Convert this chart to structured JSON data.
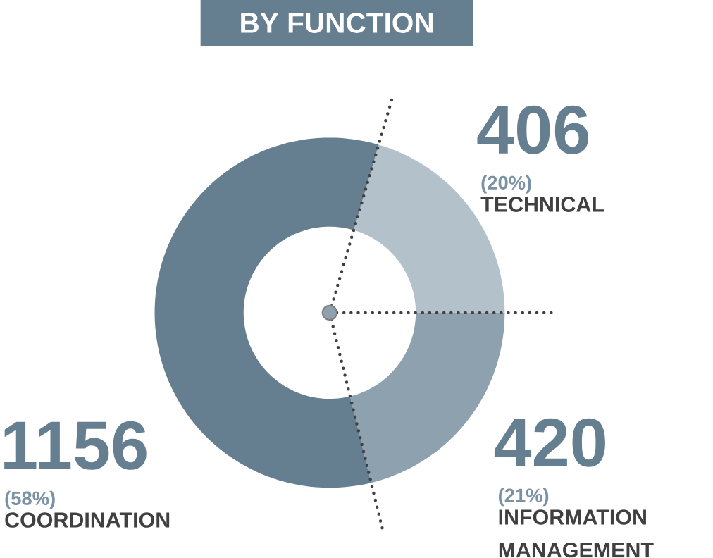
{
  "chart_data": {
    "type": "donut",
    "title": "BY FUNCTION",
    "categories": [
      "TECHNICAL",
      "INFORMATION MANAGEMENT",
      "COORDINATION"
    ],
    "values": [
      406,
      420,
      1156
    ],
    "colors": [
      "#b3c1cb",
      "#8ea1af",
      "#657f91"
    ],
    "data_labels": true,
    "annotations": [
      "(20%)",
      "(21%)",
      "(58%)"
    ]
  }
}
